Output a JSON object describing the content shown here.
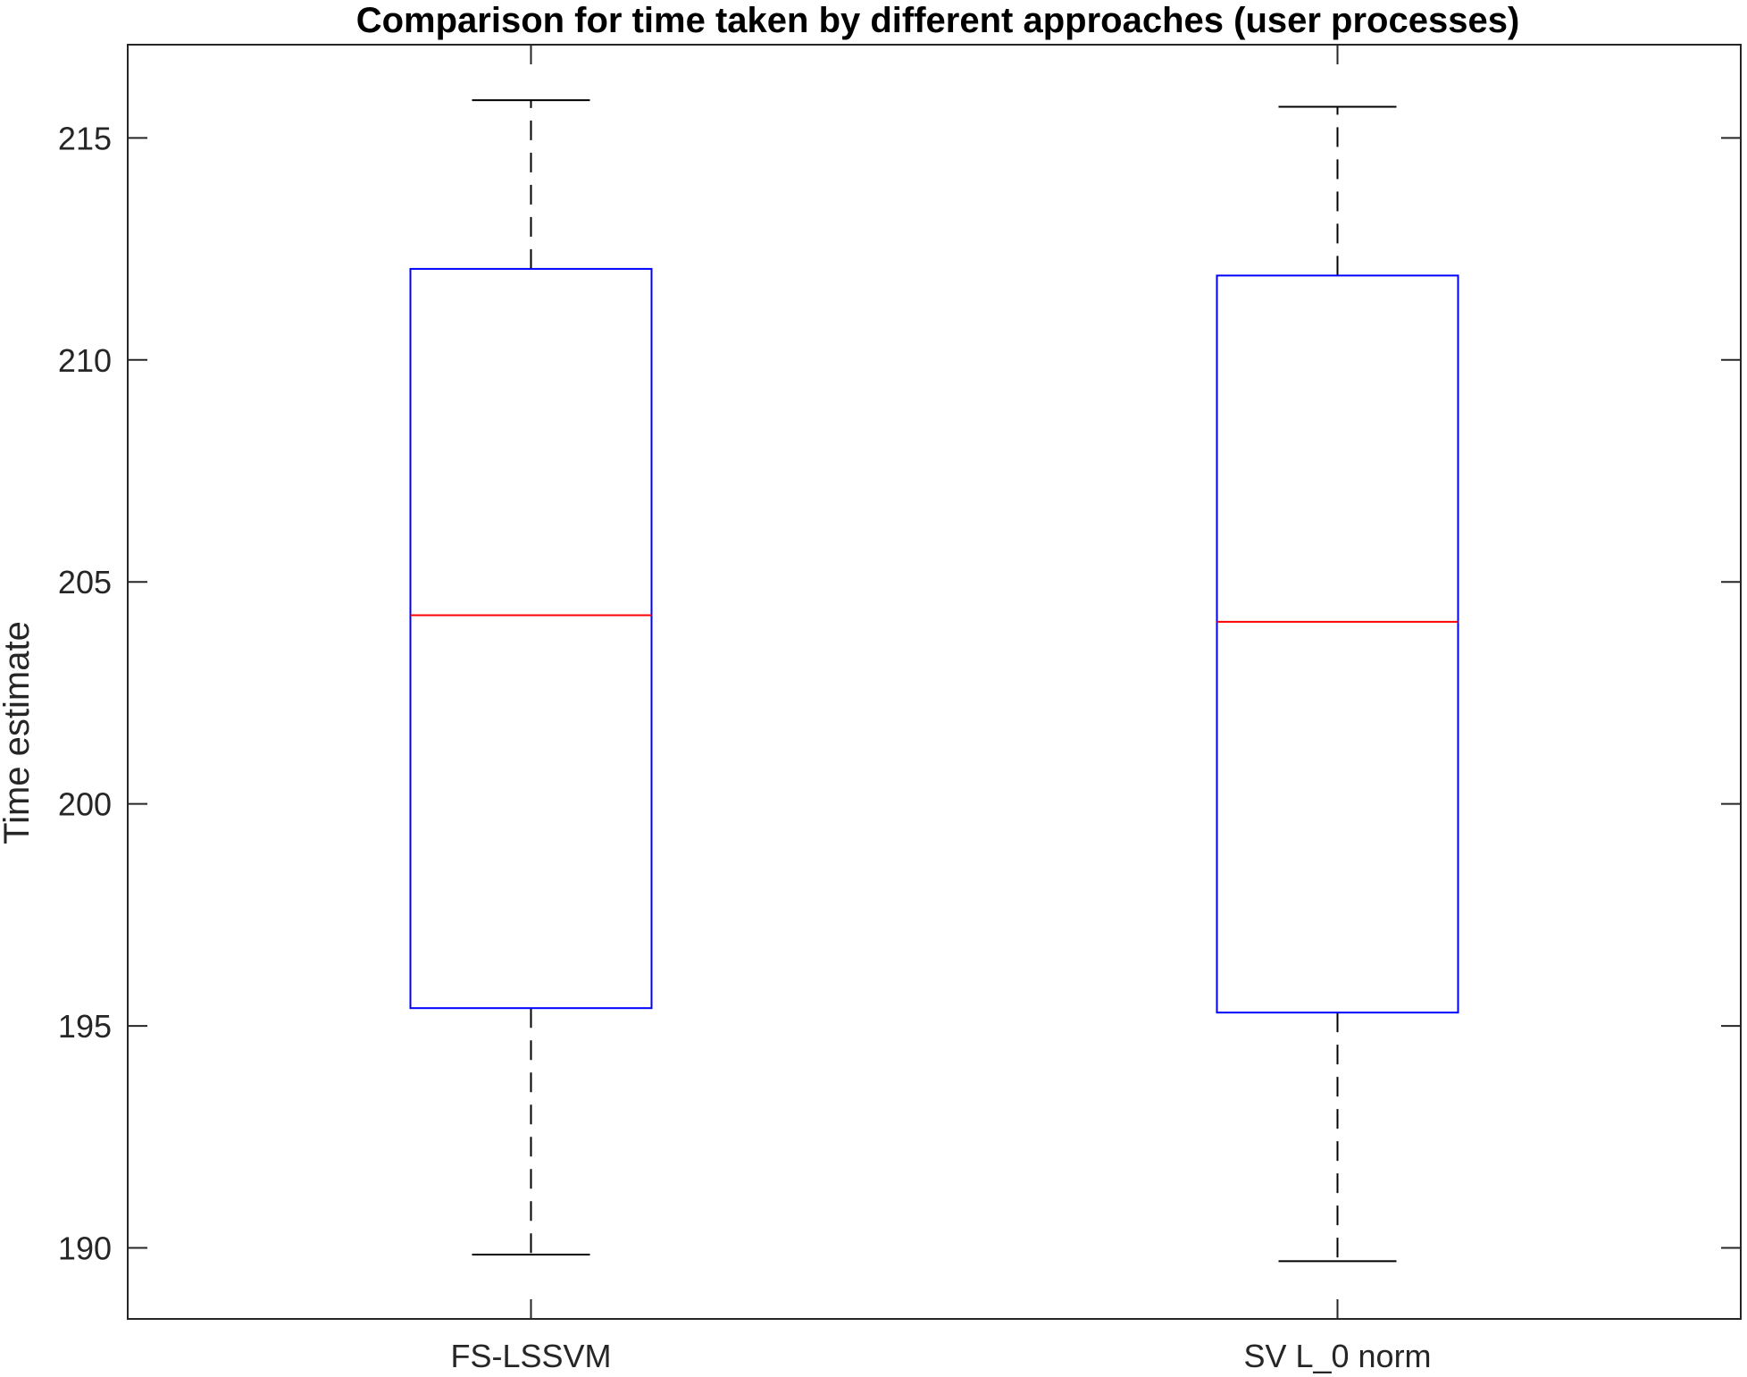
{
  "chart_data": {
    "type": "boxplot",
    "title": "Comparison for time taken by different approaches (user processes)",
    "xlabel": "",
    "ylabel": "Time estimate",
    "ylim": [
      188.4,
      217.1
    ],
    "yticks": [
      190,
      195,
      200,
      205,
      210,
      215
    ],
    "grid": false,
    "categories": [
      "FS-LSSVM",
      "SV L_0 norm"
    ],
    "boxes": [
      {
        "category": "FS-LSSVM",
        "whisker_low": 189.85,
        "q1": 195.4,
        "median": 204.25,
        "q3": 212.05,
        "whisker_high": 215.85
      },
      {
        "category": "SV L_0 norm",
        "whisker_low": 189.7,
        "q1": 195.3,
        "median": 204.1,
        "q3": 211.9,
        "whisker_high": 215.7
      }
    ],
    "colors": {
      "box": "#0000ff",
      "median": "#ff0000",
      "whisker": "#000000",
      "axes": "#262626"
    }
  }
}
